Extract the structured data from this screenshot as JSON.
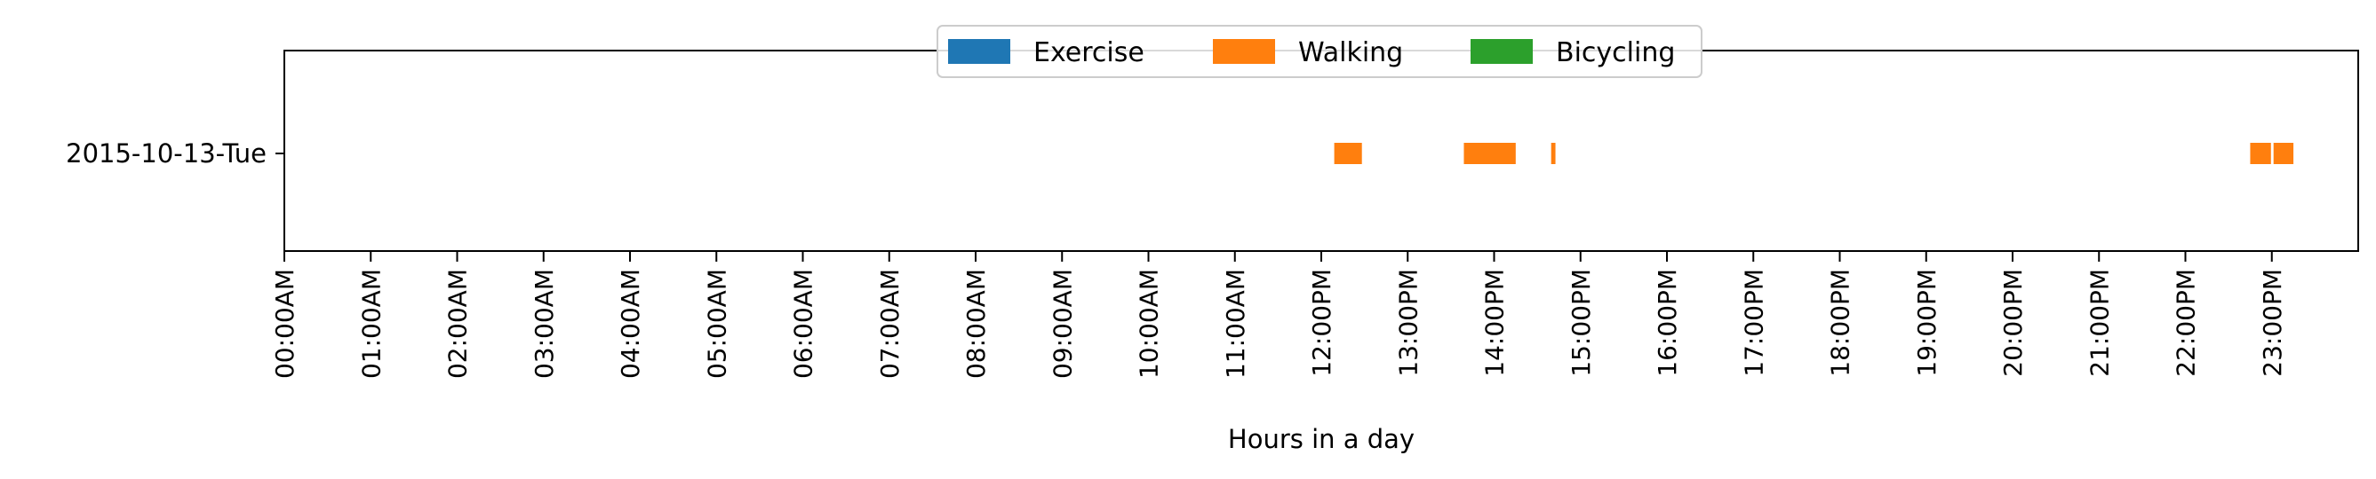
{
  "chart_data": {
    "type": "timeline",
    "categories": [
      "2015-10-13-Tue"
    ],
    "xlabel": "Hours in a day",
    "xlim": [
      0,
      24
    ],
    "ticks": [
      {
        "value": 0,
        "label": "00:00AM"
      },
      {
        "value": 1,
        "label": "01:00AM"
      },
      {
        "value": 2,
        "label": "02:00AM"
      },
      {
        "value": 3,
        "label": "03:00AM"
      },
      {
        "value": 4,
        "label": "04:00AM"
      },
      {
        "value": 5,
        "label": "05:00AM"
      },
      {
        "value": 6,
        "label": "06:00AM"
      },
      {
        "value": 7,
        "label": "07:00AM"
      },
      {
        "value": 8,
        "label": "08:00AM"
      },
      {
        "value": 9,
        "label": "09:00AM"
      },
      {
        "value": 10,
        "label": "10:00AM"
      },
      {
        "value": 11,
        "label": "11:00AM"
      },
      {
        "value": 12,
        "label": "12:00PM"
      },
      {
        "value": 13,
        "label": "13:00PM"
      },
      {
        "value": 14,
        "label": "14:00PM"
      },
      {
        "value": 15,
        "label": "15:00PM"
      },
      {
        "value": 16,
        "label": "16:00PM"
      },
      {
        "value": 17,
        "label": "17:00PM"
      },
      {
        "value": 18,
        "label": "18:00PM"
      },
      {
        "value": 19,
        "label": "19:00PM"
      },
      {
        "value": 20,
        "label": "20:00PM"
      },
      {
        "value": 21,
        "label": "21:00PM"
      },
      {
        "value": 22,
        "label": "22:00PM"
      },
      {
        "value": 23,
        "label": "23:00PM"
      }
    ],
    "legend": {
      "position": "top-center",
      "entries": [
        {
          "name": "Exercise",
          "color": "#1f77b4"
        },
        {
          "name": "Walking",
          "color": "#ff7f0e"
        },
        {
          "name": "Bicycling",
          "color": "#2ca02c"
        }
      ]
    },
    "series": [
      {
        "name": "Exercise",
        "color": "#1f77b4",
        "segments": []
      },
      {
        "name": "Walking",
        "color": "#ff7f0e",
        "segments": [
          {
            "category": "2015-10-13-Tue",
            "start": 12.15,
            "end": 12.47
          },
          {
            "category": "2015-10-13-Tue",
            "start": 13.65,
            "end": 14.25
          },
          {
            "category": "2015-10-13-Tue",
            "start": 14.66,
            "end": 14.71
          },
          {
            "category": "2015-10-13-Tue",
            "start": 22.75,
            "end": 22.99
          },
          {
            "category": "2015-10-13-Tue",
            "start": 23.02,
            "end": 23.25
          }
        ]
      },
      {
        "name": "Bicycling",
        "color": "#2ca02c",
        "segments": []
      }
    ]
  }
}
